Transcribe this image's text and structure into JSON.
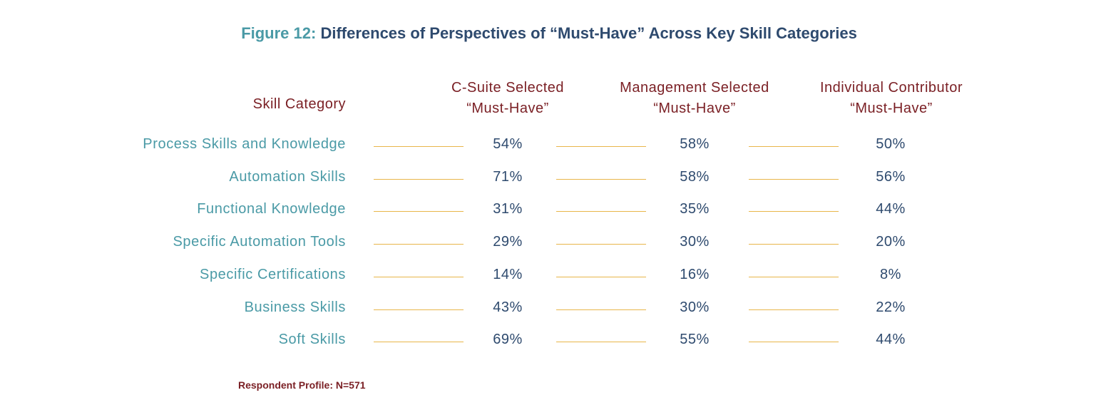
{
  "title": {
    "prefix": "Figure 12:",
    "text": "Differences of Perspectives of  “Must-Have”  Across Key Skill Categories"
  },
  "footnote": "Respondent Profile:  N=571",
  "chart_data": {
    "type": "table",
    "header": {
      "category": "Skill Category",
      "columns": [
        {
          "line1": "C-Suite Selected",
          "line2": "“Must-Have”"
        },
        {
          "line1": "Management Selected",
          "line2": "“Must-Have”"
        },
        {
          "line1": "Individual Contributor",
          "line2": "“Must-Have”"
        }
      ]
    },
    "rows": [
      {
        "category": "Process Skills and Knowledge",
        "values": [
          "54%",
          "58%",
          "50%"
        ]
      },
      {
        "category": "Automation Skills",
        "values": [
          "71%",
          "58%",
          "56%"
        ]
      },
      {
        "category": "Functional Knowledge",
        "values": [
          "31%",
          "35%",
          "44%"
        ]
      },
      {
        "category": "Specific Automation Tools",
        "values": [
          "29%",
          "30%",
          "20%"
        ]
      },
      {
        "category": "Specific Certifications",
        "values": [
          "14%",
          "16%",
          "8%"
        ]
      },
      {
        "category": "Business Skills",
        "values": [
          "43%",
          "30%",
          "22%"
        ]
      },
      {
        "category": "Soft Skills",
        "values": [
          "69%",
          "55%",
          "44%"
        ]
      }
    ]
  }
}
